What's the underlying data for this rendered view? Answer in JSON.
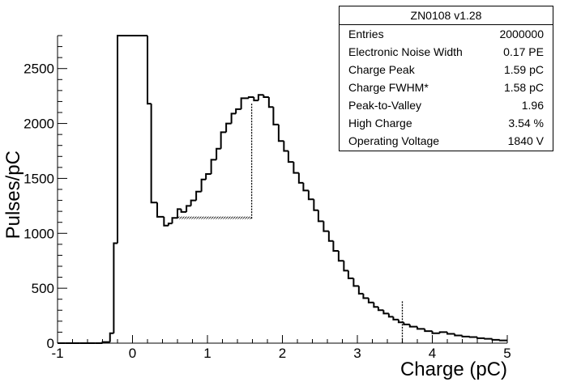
{
  "chart_data": {
    "type": "histogram",
    "xlabel": "Charge (pC)",
    "ylabel": "Pulses/pC",
    "xlim": [
      -1,
      5
    ],
    "ylim": [
      0,
      2800
    ],
    "xticks": [
      -1,
      0,
      1,
      2,
      3,
      4,
      5
    ],
    "yticks": [
      0,
      500,
      1000,
      1500,
      2000,
      2500
    ],
    "bin_width": 0.1,
    "bins": [
      {
        "x": -1.0,
        "y": 0
      },
      {
        "x": -0.9,
        "y": 0
      },
      {
        "x": -0.8,
        "y": 0
      },
      {
        "x": -0.7,
        "y": 0
      },
      {
        "x": -0.6,
        "y": 0
      },
      {
        "x": -0.5,
        "y": 0
      },
      {
        "x": -0.4,
        "y": 10
      },
      {
        "x": -0.3,
        "y": 90
      },
      {
        "x": -0.25,
        "y": 910
      },
      {
        "x": -0.2,
        "y": 2800
      },
      {
        "x": 0.2,
        "y": 2180
      },
      {
        "x": 0.25,
        "y": 1280
      },
      {
        "x": 0.33,
        "y": 1150
      },
      {
        "x": 0.42,
        "y": 1070
      },
      {
        "x": 0.48,
        "y": 1090
      },
      {
        "x": 0.53,
        "y": 1140
      },
      {
        "x": 0.6,
        "y": 1220
      },
      {
        "x": 0.65,
        "y": 1195
      },
      {
        "x": 0.72,
        "y": 1250
      },
      {
        "x": 0.78,
        "y": 1300
      },
      {
        "x": 0.85,
        "y": 1380
      },
      {
        "x": 0.92,
        "y": 1490
      },
      {
        "x": 0.98,
        "y": 1540
      },
      {
        "x": 1.05,
        "y": 1670
      },
      {
        "x": 1.12,
        "y": 1770
      },
      {
        "x": 1.18,
        "y": 1920
      },
      {
        "x": 1.25,
        "y": 2000
      },
      {
        "x": 1.32,
        "y": 2090
      },
      {
        "x": 1.38,
        "y": 2130
      },
      {
        "x": 1.45,
        "y": 2230
      },
      {
        "x": 1.55,
        "y": 2240
      },
      {
        "x": 1.62,
        "y": 2210
      },
      {
        "x": 1.68,
        "y": 2260
      },
      {
        "x": 1.75,
        "y": 2240
      },
      {
        "x": 1.82,
        "y": 2150
      },
      {
        "x": 1.88,
        "y": 1990
      },
      {
        "x": 1.95,
        "y": 1840
      },
      {
        "x": 2.02,
        "y": 1750
      },
      {
        "x": 2.08,
        "y": 1650
      },
      {
        "x": 2.15,
        "y": 1550
      },
      {
        "x": 2.22,
        "y": 1460
      },
      {
        "x": 2.28,
        "y": 1390
      },
      {
        "x": 2.35,
        "y": 1310
      },
      {
        "x": 2.42,
        "y": 1210
      },
      {
        "x": 2.48,
        "y": 1110
      },
      {
        "x": 2.55,
        "y": 1020
      },
      {
        "x": 2.62,
        "y": 930
      },
      {
        "x": 2.68,
        "y": 840
      },
      {
        "x": 2.75,
        "y": 750
      },
      {
        "x": 2.82,
        "y": 660
      },
      {
        "x": 2.88,
        "y": 590
      },
      {
        "x": 2.95,
        "y": 520
      },
      {
        "x": 3.02,
        "y": 450
      },
      {
        "x": 3.08,
        "y": 410
      },
      {
        "x": 3.15,
        "y": 370
      },
      {
        "x": 3.22,
        "y": 330
      },
      {
        "x": 3.28,
        "y": 300
      },
      {
        "x": 3.35,
        "y": 270
      },
      {
        "x": 3.42,
        "y": 240
      },
      {
        "x": 3.48,
        "y": 215
      },
      {
        "x": 3.55,
        "y": 190
      },
      {
        "x": 3.62,
        "y": 170
      },
      {
        "x": 3.7,
        "y": 150
      },
      {
        "x": 3.8,
        "y": 130
      },
      {
        "x": 3.9,
        "y": 110
      },
      {
        "x": 4.0,
        "y": 90
      },
      {
        "x": 4.1,
        "y": 100
      },
      {
        "x": 4.2,
        "y": 85
      },
      {
        "x": 4.3,
        "y": 70
      },
      {
        "x": 4.4,
        "y": 60
      },
      {
        "x": 4.5,
        "y": 55
      },
      {
        "x": 4.6,
        "y": 45
      },
      {
        "x": 4.7,
        "y": 40
      },
      {
        "x": 4.8,
        "y": 30
      },
      {
        "x": 4.9,
        "y": 25
      }
    ],
    "x_end": 5.0,
    "annotations": {
      "peak_marker": {
        "x": 1.59,
        "y_top": 2180,
        "y_bottom": 1130
      },
      "valley_marker": {
        "x_start": 0.6,
        "x_end": 1.59,
        "y": 1130
      },
      "high_charge_marker": {
        "x": 3.6,
        "y_top": 380,
        "y_bottom": 0
      }
    }
  },
  "stats_box": {
    "title": "ZN0108 v1.28",
    "rows": [
      {
        "label": "Entries",
        "value": "2000000"
      },
      {
        "label": "Electronic Noise Width",
        "value": "0.17 PE"
      },
      {
        "label": "Charge Peak",
        "value": "1.59 pC"
      },
      {
        "label": "Charge FWHM*",
        "value": "1.58 pC"
      },
      {
        "label": "Peak-to-Valley",
        "value": "1.96"
      },
      {
        "label": "High Charge",
        "value": "3.54 %"
      },
      {
        "label": "Operating Voltage",
        "value": "1840 V"
      }
    ]
  }
}
